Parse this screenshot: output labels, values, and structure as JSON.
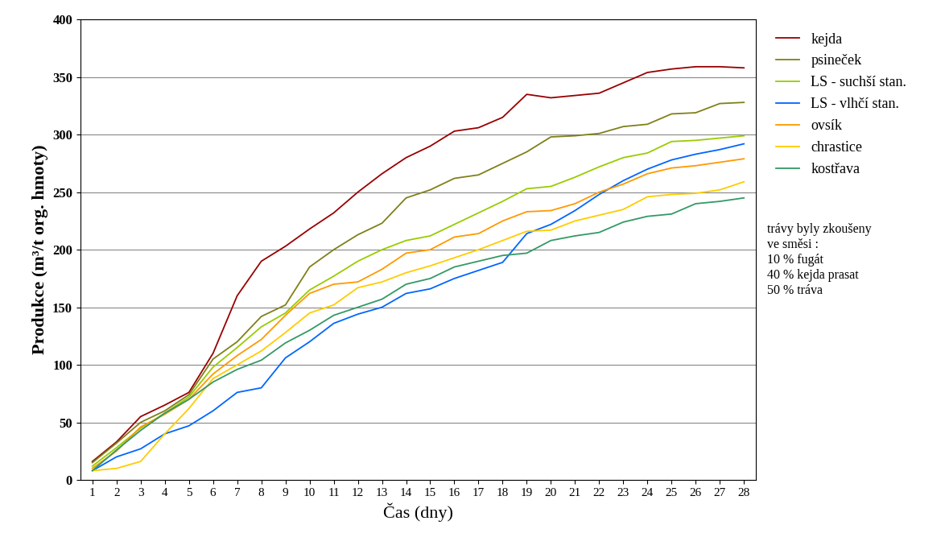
{
  "chart_data": {
    "type": "line",
    "x_label": "Čas (dny)",
    "y_label": "Produkce (m³/t org. hmoty)",
    "x": [
      1,
      2,
      3,
      4,
      5,
      6,
      7,
      8,
      9,
      10,
      11,
      12,
      13,
      14,
      15,
      16,
      17,
      18,
      19,
      20,
      21,
      22,
      23,
      24,
      25,
      26,
      27,
      28
    ],
    "xlim": [
      0.5,
      28.5
    ],
    "xticks": [
      1,
      2,
      3,
      4,
      5,
      6,
      7,
      8,
      9,
      10,
      11,
      12,
      13,
      14,
      15,
      16,
      17,
      18,
      19,
      20,
      21,
      22,
      23,
      24,
      25,
      26,
      27,
      28
    ],
    "ylim": [
      0,
      400
    ],
    "yticks": [
      0,
      50,
      100,
      150,
      200,
      250,
      300,
      350,
      400
    ],
    "grid": true,
    "legend": "upper left",
    "series": [
      {
        "name": "kejda",
        "color": "#990000",
        "values": [
          16,
          33,
          55,
          65,
          76,
          110,
          160,
          190,
          203,
          218,
          232,
          250,
          266,
          280,
          290,
          303,
          306,
          315,
          335,
          332,
          334,
          336,
          345,
          354,
          357,
          359,
          359,
          358
        ]
      },
      {
        "name": "psineček",
        "color": "#808019",
        "values": [
          15,
          32,
          50,
          60,
          74,
          105,
          120,
          142,
          152,
          185,
          200,
          213,
          223,
          245,
          252,
          262,
          265,
          275,
          285,
          298,
          299,
          301,
          307,
          309,
          318,
          319,
          327,
          328
        ]
      },
      {
        "name": "LS - suchší stan.",
        "color": "#99CC00",
        "values": [
          12,
          28,
          45,
          58,
          72,
          98,
          115,
          133,
          145,
          165,
          177,
          190,
          200,
          208,
          212,
          222,
          232,
          242,
          253,
          255,
          263,
          272,
          280,
          284,
          294,
          295,
          297,
          299
        ]
      },
      {
        "name": "LS - vlhčí stan.",
        "color": "#0066FF",
        "values": [
          8,
          20,
          27,
          40,
          47,
          60,
          76,
          80,
          106,
          120,
          136,
          144,
          150,
          162,
          166,
          175,
          182,
          189,
          214,
          222,
          234,
          248,
          260,
          270,
          278,
          283,
          287,
          292
        ]
      },
      {
        "name": "ovsík",
        "color": "#FF9900",
        "values": [
          10,
          25,
          46,
          57,
          70,
          92,
          108,
          122,
          143,
          162,
          170,
          172,
          183,
          197,
          200,
          211,
          214,
          225,
          233,
          234,
          240,
          250,
          257,
          266,
          271,
          273,
          276,
          279
        ]
      },
      {
        "name": "chrastice",
        "color": "#FFCC00",
        "values": [
          8,
          10,
          16,
          40,
          62,
          88,
          100,
          112,
          128,
          145,
          152,
          167,
          172,
          180,
          186,
          193,
          200,
          208,
          216,
          217,
          225,
          230,
          235,
          246,
          248,
          249,
          252,
          259
        ]
      },
      {
        "name": "kostřava",
        "color": "#339966",
        "values": [
          8,
          26,
          43,
          58,
          70,
          85,
          96,
          104,
          119,
          130,
          143,
          150,
          157,
          170,
          175,
          185,
          190,
          195,
          197,
          208,
          212,
          215,
          224,
          229,
          231,
          240,
          242,
          245
        ]
      }
    ],
    "annotations": [
      "trávy byly zkoušeny",
      "ve směsi :",
      "10 % fugát",
      "40 % kejda prasat",
      "50 % tráva"
    ]
  }
}
